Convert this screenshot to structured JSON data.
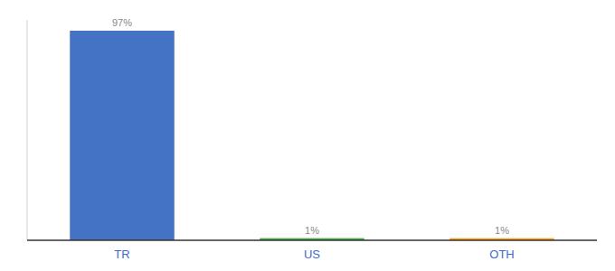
{
  "chart_data": {
    "type": "bar",
    "categories": [
      "TR",
      "US",
      "OTH"
    ],
    "values": [
      97,
      1,
      1
    ],
    "value_labels": [
      "97%",
      "1%",
      "1%"
    ],
    "colors": [
      "#4472c4",
      "#4caf50",
      "#f5a623"
    ],
    "ylim": [
      0,
      102
    ],
    "data_labels": true,
    "tick_labels": "x"
  }
}
